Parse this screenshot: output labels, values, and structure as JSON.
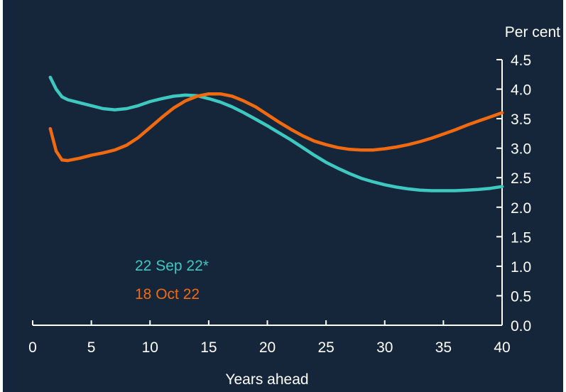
{
  "chart_data": {
    "type": "line",
    "title": "",
    "xlabel": "Years ahead",
    "ylabel": "Per cent",
    "xlim": [
      0,
      40
    ],
    "ylim": [
      0,
      4.5
    ],
    "x_ticks": [
      "0",
      "5",
      "10",
      "15",
      "20",
      "25",
      "30",
      "35",
      "40"
    ],
    "y_ticks": [
      "0.0",
      "0.5",
      "1.0",
      "1.5",
      "2.0",
      "2.5",
      "3.0",
      "3.5",
      "4.0",
      "4.5"
    ],
    "y_axis_side": "right",
    "grid": false,
    "legend_position": "bottom-left inside plot, text labels",
    "series": [
      {
        "name": "22 Sep 22*",
        "color": "#3ec9c0",
        "x": [
          1.5,
          2,
          2.5,
          3,
          4,
          5,
          6,
          7,
          8,
          9,
          10,
          11,
          12,
          13,
          14,
          15,
          16,
          17,
          18,
          19,
          20,
          21,
          22,
          23,
          24,
          25,
          26,
          27,
          28,
          29,
          30,
          31,
          32,
          33,
          34,
          35,
          36,
          37,
          38,
          39,
          40
        ],
        "values": [
          4.2,
          4.0,
          3.87,
          3.82,
          3.77,
          3.72,
          3.67,
          3.65,
          3.67,
          3.72,
          3.79,
          3.84,
          3.88,
          3.9,
          3.89,
          3.84,
          3.78,
          3.7,
          3.6,
          3.49,
          3.38,
          3.26,
          3.14,
          3.01,
          2.88,
          2.76,
          2.66,
          2.57,
          2.49,
          2.43,
          2.38,
          2.34,
          2.31,
          2.29,
          2.28,
          2.28,
          2.28,
          2.29,
          2.3,
          2.32,
          2.35
        ]
      },
      {
        "name": "18 Oct 22",
        "color": "#f26a10",
        "x": [
          1.5,
          2,
          2.5,
          3,
          4,
          5,
          6,
          7,
          8,
          9,
          10,
          11,
          12,
          13,
          14,
          15,
          16,
          17,
          18,
          19,
          20,
          21,
          22,
          23,
          24,
          25,
          26,
          27,
          28,
          29,
          30,
          31,
          32,
          33,
          34,
          35,
          36,
          37,
          38,
          39,
          40
        ],
        "values": [
          3.33,
          2.95,
          2.8,
          2.79,
          2.83,
          2.88,
          2.92,
          2.97,
          3.05,
          3.18,
          3.35,
          3.52,
          3.68,
          3.8,
          3.88,
          3.92,
          3.92,
          3.88,
          3.8,
          3.7,
          3.57,
          3.44,
          3.32,
          3.21,
          3.12,
          3.06,
          3.01,
          2.98,
          2.97,
          2.97,
          2.99,
          3.02,
          3.06,
          3.11,
          3.17,
          3.24,
          3.31,
          3.39,
          3.46,
          3.53,
          3.6
        ]
      }
    ]
  }
}
